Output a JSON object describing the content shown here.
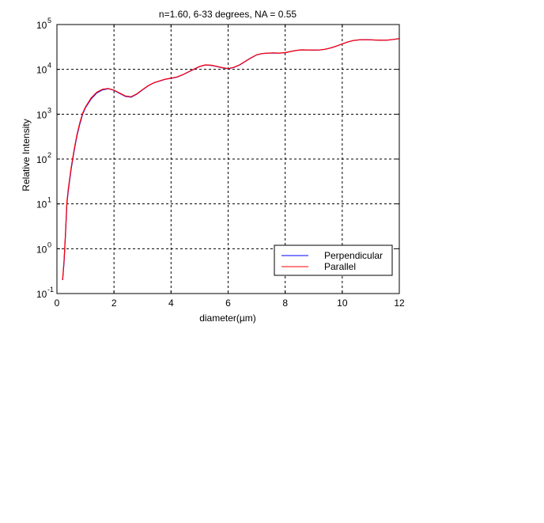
{
  "chart_data": {
    "type": "line",
    "title": "n=1.60, 6-33 degrees, NA = 0.55",
    "xlabel": "diameter(µm)",
    "ylabel": "Relative Intensity",
    "xlim": [
      0,
      12
    ],
    "ylim_log10": [
      -1,
      5
    ],
    "yscale": "log",
    "x_ticks": [
      "0",
      "2",
      "4",
      "6",
      "8",
      "10",
      "12"
    ],
    "y_ticks": [
      {
        "base": "10",
        "exp": "-1"
      },
      {
        "base": "10",
        "exp": "0"
      },
      {
        "base": "10",
        "exp": "1"
      },
      {
        "base": "10",
        "exp": "2"
      },
      {
        "base": "10",
        "exp": "3"
      },
      {
        "base": "10",
        "exp": "4"
      },
      {
        "base": "10",
        "exp": "5"
      }
    ],
    "grid": true,
    "legend_position": "bottom-right",
    "series": [
      {
        "name": "Perpendicular",
        "color": "#0000ff",
        "x": [
          0.2,
          0.25,
          0.3,
          0.35,
          0.4,
          0.5,
          0.6,
          0.7,
          0.8,
          0.9,
          1.0,
          1.2,
          1.4,
          1.6,
          1.8,
          2.0,
          2.2,
          2.4,
          2.6,
          2.8,
          3.0,
          3.2,
          3.4,
          3.6,
          3.8,
          4.0,
          4.2,
          4.4,
          4.6,
          4.8,
          5.0,
          5.2,
          5.4,
          5.6,
          5.8,
          6.0,
          6.2,
          6.4,
          6.6,
          6.8,
          7.0,
          7.2,
          7.4,
          7.6,
          7.8,
          8.0,
          8.2,
          8.4,
          8.6,
          8.8,
          9.0,
          9.2,
          9.4,
          9.6,
          9.8,
          10.0,
          10.2,
          10.4,
          10.6,
          10.8,
          11.0,
          11.2,
          11.4,
          11.6,
          11.8,
          12.0
        ],
        "y": [
          0.2,
          0.5,
          2,
          10,
          20,
          60,
          150,
          330,
          600,
          1000,
          1400,
          2200,
          3000,
          3500,
          3700,
          3400,
          2900,
          2500,
          2400,
          2800,
          3500,
          4300,
          5000,
          5500,
          6000,
          6300,
          6700,
          7500,
          8700,
          10000,
          11500,
          12500,
          12300,
          11600,
          10800,
          10300,
          11000,
          12500,
          15000,
          18000,
          21000,
          22500,
          23000,
          23200,
          23000,
          23500,
          25000,
          26500,
          27200,
          27000,
          26800,
          27000,
          28000,
          30000,
          33000,
          37000,
          41000,
          44000,
          45500,
          45800,
          45500,
          45000,
          44500,
          45000,
          46500,
          48500
        ]
      },
      {
        "name": "Parallel",
        "color": "#ff0000",
        "x": [
          0.2,
          0.25,
          0.3,
          0.35,
          0.4,
          0.5,
          0.6,
          0.7,
          0.8,
          0.9,
          1.0,
          1.2,
          1.4,
          1.6,
          1.8,
          2.0,
          2.2,
          2.4,
          2.6,
          2.8,
          3.0,
          3.2,
          3.4,
          3.6,
          3.8,
          4.0,
          4.2,
          4.4,
          4.6,
          4.8,
          5.0,
          5.2,
          5.4,
          5.6,
          5.8,
          6.0,
          6.2,
          6.4,
          6.6,
          6.8,
          7.0,
          7.2,
          7.4,
          7.6,
          7.8,
          8.0,
          8.2,
          8.4,
          8.6,
          8.8,
          9.0,
          9.2,
          9.4,
          9.6,
          9.8,
          10.0,
          10.2,
          10.4,
          10.6,
          10.8,
          11.0,
          11.2,
          11.4,
          11.6,
          11.8,
          12.0
        ],
        "y": [
          0.2,
          0.55,
          2.2,
          11,
          22,
          65,
          160,
          350,
          640,
          1050,
          1450,
          2300,
          3100,
          3600,
          3750,
          3450,
          2950,
          2550,
          2450,
          2850,
          3550,
          4350,
          5050,
          5550,
          6050,
          6350,
          6750,
          7550,
          8750,
          10100,
          11600,
          12600,
          12400,
          11700,
          10900,
          10400,
          11100,
          12600,
          15100,
          18100,
          21100,
          22600,
          23100,
          23300,
          23100,
          23600,
          25100,
          26600,
          27300,
          27100,
          26900,
          27100,
          28100,
          30100,
          33100,
          37100,
          41100,
          44100,
          45600,
          45900,
          45600,
          45100,
          44600,
          45100,
          46600,
          48600
        ]
      }
    ]
  }
}
